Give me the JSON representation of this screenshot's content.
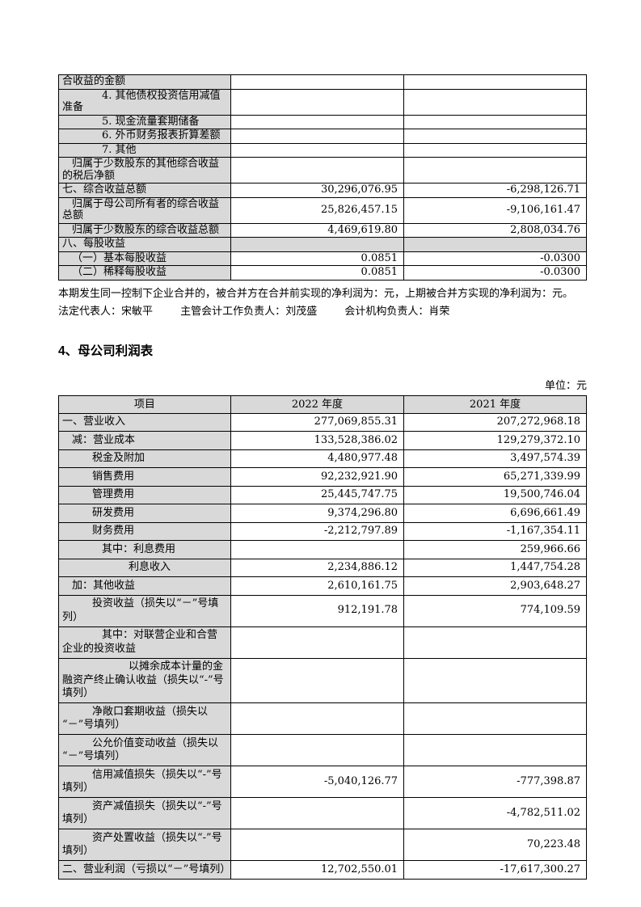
{
  "colors": {
    "shade": "#d9d9d9",
    "border": "#000000"
  },
  "table1": {
    "rows": [
      {
        "label": "合收益的金额",
        "v1": "",
        "v2": "",
        "indent": 0
      },
      {
        "label": "4. 其他债权投资信用减值准备",
        "v1": "",
        "v2": "",
        "indent": 3
      },
      {
        "label": "5. 现金流量套期储备",
        "v1": "",
        "v2": "",
        "indent": 3
      },
      {
        "label": "6. 外币财务报表折算差额",
        "v1": "",
        "v2": "",
        "indent": 3
      },
      {
        "label": "7. 其他",
        "v1": "",
        "v2": "",
        "indent": 3
      },
      {
        "label": "归属于少数股东的其他综合收益的税后净额",
        "v1": "",
        "v2": "",
        "indent": 1
      },
      {
        "label": "七、综合收益总额",
        "v1": "30,296,076.95",
        "v2": "-6,298,126.71",
        "indent": 0
      },
      {
        "label": "归属于母公司所有者的综合收益总额",
        "v1": "25,826,457.15",
        "v2": "-9,106,161.47",
        "indent": 1
      },
      {
        "label": "归属于少数股东的综合收益总额",
        "v1": "4,469,619.80",
        "v2": "2,808,034.76",
        "indent": 1
      },
      {
        "label": "八、每股收益",
        "v1": "",
        "v2": "",
        "indent": 0,
        "all_gray": true
      },
      {
        "label": "（一）基本每股收益",
        "v1": "0.0851",
        "v2": "-0.0300",
        "indent": 1
      },
      {
        "label": "（二）稀释每股收益",
        "v1": "0.0851",
        "v2": "-0.0300",
        "indent": 1
      }
    ]
  },
  "merger_note": "本期发生同一控制下企业合并的，被合并方在合并前实现的净利润为：元，上期被合并方实现的净利润为：元。",
  "signatories": [
    {
      "label": "法定代表人：",
      "name": "宋敏平"
    },
    {
      "label": "主管会计工作负责人：",
      "name": "刘茂盛"
    },
    {
      "label": "会计机构负责人：",
      "name": "肖荣"
    }
  ],
  "section_title": "4、母公司利润表",
  "unit_label": "单位：元",
  "table2": {
    "headers": [
      "项目",
      "2022 年度",
      "2021 年度"
    ],
    "rows": [
      {
        "label": "一、营业收入",
        "v1": "277,069,855.31",
        "v2": "207,272,968.18",
        "indent": 0
      },
      {
        "label": "减：营业成本",
        "v1": "133,528,386.02",
        "v2": "129,279,372.10",
        "indent": 1
      },
      {
        "label": "税金及附加",
        "v1": "4,480,977.48",
        "v2": "3,497,574.39",
        "indent": 2
      },
      {
        "label": "销售费用",
        "v1": "92,232,921.90",
        "v2": "65,271,339.99",
        "indent": 2
      },
      {
        "label": "管理费用",
        "v1": "25,445,747.75",
        "v2": "19,500,746.04",
        "indent": 2
      },
      {
        "label": "研发费用",
        "v1": "9,374,296.80",
        "v2": "6,696,661.49",
        "indent": 2
      },
      {
        "label": "财务费用",
        "v1": "-2,212,797.89",
        "v2": "-1,167,354.11",
        "indent": 2
      },
      {
        "label": "其中：利息费用",
        "v1": "",
        "v2": "259,966.66",
        "indent": 3
      },
      {
        "label": "利息收入",
        "v1": "2,234,886.12",
        "v2": "1,447,754.28",
        "indent": 4
      },
      {
        "label": "加：其他收益",
        "v1": "2,610,161.75",
        "v2": "2,903,648.27",
        "indent": 1
      },
      {
        "label": "投资收益（损失以“－”号填列）",
        "v1": "912,191.78",
        "v2": "774,109.59",
        "indent": 2
      },
      {
        "label": "其中：对联营企业和合营企业的投资收益",
        "v1": "",
        "v2": "",
        "indent": 3
      },
      {
        "label": "以摊余成本计量的金融资产终止确认收益（损失以“-”号填列）",
        "v1": "",
        "v2": "",
        "indent": 4
      },
      {
        "label": "净敞口套期收益（损失以“－”号填列）",
        "v1": "",
        "v2": "",
        "indent": 2
      },
      {
        "label": "公允价值变动收益（损失以“－”号填列）",
        "v1": "",
        "v2": "",
        "indent": 2
      },
      {
        "label": "信用减值损失（损失以“-”号填列）",
        "v1": "-5,040,126.77",
        "v2": "-777,398.87",
        "indent": 2
      },
      {
        "label": "资产减值损失（损失以“-”号填列）",
        "v1": "",
        "v2": "-4,782,511.02",
        "indent": 2
      },
      {
        "label": "资产处置收益（损失以“-”号填列）",
        "v1": "",
        "v2": "70,223.48",
        "indent": 2
      },
      {
        "label": "二、营业利润（亏损以“－”号填列）",
        "v1": "12,702,550.01",
        "v2": "-17,617,300.27",
        "indent": 0
      }
    ]
  }
}
